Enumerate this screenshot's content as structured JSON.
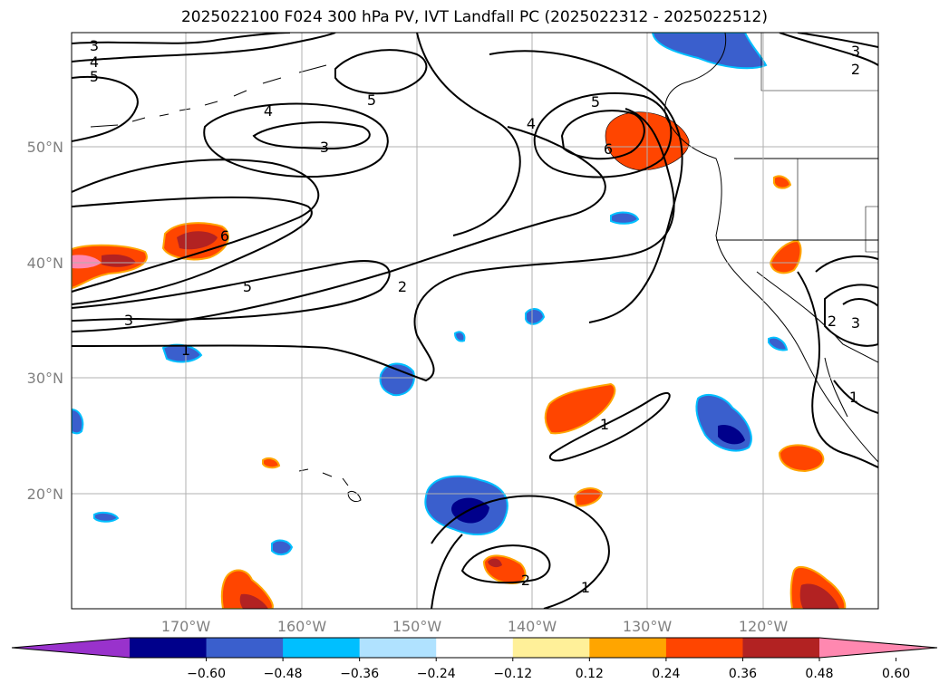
{
  "title": "2025022100 F024 300 hPa PV, IVT Landfall PC (2025022312 - 2025022512)",
  "map": {
    "lat_labels": [
      "50°N",
      "40°N",
      "30°N",
      "20°N"
    ],
    "lon_labels": [
      "170°W",
      "160°W",
      "150°W",
      "140°W",
      "130°W",
      "120°W"
    ],
    "grid": true
  },
  "contour_labels": {
    "n3a": "3",
    "n4a": "4",
    "n5a": "5",
    "n4b": "4",
    "n5b": "5",
    "n3b": "3",
    "n6a": "6",
    "n5c": "5",
    "n3c": "3",
    "n2a": "2",
    "n4c": "4",
    "n5d": "5",
    "n6b": "6",
    "n3d": "3",
    "n2b": "2",
    "n2c": "2",
    "n3e": "3",
    "n1a": "1",
    "n1b": "1",
    "n1c": "1",
    "n2d": "2",
    "n1d": "1"
  },
  "colorbar": {
    "ticks": [
      "−0.60",
      "−0.48",
      "−0.36",
      "−0.24",
      "−0.12",
      "0.12",
      "0.24",
      "0.36",
      "0.48",
      "0.60"
    ],
    "colors": [
      "#9932cc",
      "#00008b",
      "#3a5fcd",
      "#00bfff",
      "#b0e2ff",
      "#ffffff",
      "#fff099",
      "#ffa500",
      "#ff4500",
      "#b22222",
      "#ff88b0"
    ]
  }
}
